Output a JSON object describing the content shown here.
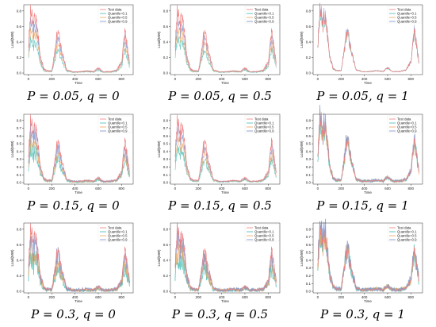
{
  "colors": {
    "test": "#f08080",
    "q01": "#3fb9b0",
    "q05": "#f0a35a",
    "q09": "#7b8fc9",
    "axis": "#333333"
  },
  "chart_data": [
    {
      "type": "line",
      "caption": "P = 0.05, q = 0",
      "xlabel": "Time",
      "ylabel": "Load(MW)",
      "xlim": [
        -40,
        900
      ],
      "ylim": [
        -0.02,
        0.88
      ],
      "xticks": [
        0,
        200,
        400,
        600,
        800
      ],
      "yticks": [
        0.0,
        0.2,
        0.4,
        0.6,
        0.8
      ],
      "legend": [
        "Test data",
        "Quantile=0.1",
        "Quantile=0.5",
        "Quantile=0.9"
      ],
      "noise": 0.2,
      "qshape": "tight",
      "x": [
        0,
        20,
        40,
        60,
        80,
        100,
        130,
        160,
        200,
        230,
        250,
        270,
        300,
        330,
        380,
        450,
        500,
        560,
        600,
        640,
        700,
        760,
        800,
        830,
        850,
        870
      ],
      "series": [
        {
          "name": "Test data",
          "values": [
            0.35,
            0.8,
            0.62,
            0.72,
            0.55,
            0.25,
            0.06,
            0.03,
            0.03,
            0.3,
            0.55,
            0.42,
            0.2,
            0.04,
            0.02,
            0.02,
            0.03,
            0.02,
            0.07,
            0.02,
            0.02,
            0.04,
            0.15,
            0.55,
            0.35,
            0.12
          ]
        }
      ]
    },
    {
      "type": "line",
      "caption": "P = 0.05, q = 0.5",
      "xlabel": "Time",
      "ylabel": "Load(MW)",
      "xlim": [
        -40,
        900
      ],
      "ylim": [
        -0.02,
        0.88
      ],
      "xticks": [
        0,
        200,
        400,
        600,
        800
      ],
      "yticks": [
        0.0,
        0.2,
        0.4,
        0.6,
        0.8
      ],
      "legend": [
        "Test data",
        "Quantile=0.1",
        "Quantile=0.5",
        "Quantile=0.9"
      ],
      "noise": 0.2,
      "qshape": "tight",
      "x": [
        0,
        20,
        40,
        60,
        80,
        100,
        130,
        160,
        200,
        230,
        250,
        270,
        300,
        330,
        380,
        450,
        500,
        560,
        600,
        640,
        700,
        760,
        800,
        830,
        850,
        870
      ],
      "series": [
        {
          "name": "Test data",
          "values": [
            0.35,
            0.8,
            0.62,
            0.72,
            0.55,
            0.25,
            0.06,
            0.03,
            0.03,
            0.3,
            0.55,
            0.42,
            0.2,
            0.04,
            0.02,
            0.02,
            0.03,
            0.02,
            0.07,
            0.02,
            0.02,
            0.04,
            0.15,
            0.55,
            0.35,
            0.12
          ]
        }
      ]
    },
    {
      "type": "line",
      "caption": "P = 0.05, q = 1",
      "xlabel": "Time",
      "ylabel": "Load(MW)",
      "xlim": [
        -40,
        900
      ],
      "ylim": [
        -0.02,
        0.88
      ],
      "xticks": [
        0,
        200,
        400,
        600,
        800
      ],
      "yticks": [
        0.0,
        0.2,
        0.4,
        0.6,
        0.8
      ],
      "legend": [
        "Test data",
        "Quantile=0.1",
        "Quantile=0.5",
        "Quantile=0.9"
      ],
      "noise": 0.15,
      "qshape": "follow",
      "x": [
        0,
        20,
        40,
        60,
        80,
        100,
        130,
        160,
        200,
        230,
        250,
        270,
        300,
        330,
        380,
        450,
        500,
        560,
        600,
        640,
        700,
        760,
        800,
        830,
        850,
        870
      ],
      "series": [
        {
          "name": "Test data",
          "values": [
            0.35,
            0.8,
            0.62,
            0.72,
            0.55,
            0.25,
            0.06,
            0.03,
            0.03,
            0.3,
            0.55,
            0.42,
            0.2,
            0.04,
            0.02,
            0.02,
            0.03,
            0.02,
            0.07,
            0.02,
            0.02,
            0.04,
            0.15,
            0.55,
            0.35,
            0.12
          ]
        }
      ]
    },
    {
      "type": "line",
      "caption": "P = 0.15, q = 0",
      "xlabel": "Time",
      "ylabel": "Load(MW)",
      "xlim": [
        -40,
        900
      ],
      "ylim": [
        -0.02,
        0.88
      ],
      "xticks": [
        0,
        200,
        400,
        600,
        800
      ],
      "yticks": [
        0.0,
        0.1,
        0.2,
        0.3,
        0.4,
        0.5,
        0.6,
        0.7,
        0.8
      ],
      "legend": [
        "Test data",
        "Quantile=0.1",
        "Quantile=0.5",
        "Quantile=0.9"
      ],
      "noise": 0.5,
      "qshape": "wide",
      "x": [
        0,
        20,
        40,
        60,
        80,
        100,
        130,
        160,
        200,
        230,
        250,
        270,
        300,
        330,
        380,
        450,
        500,
        560,
        600,
        640,
        700,
        760,
        800,
        830,
        850,
        870
      ],
      "series": [
        {
          "name": "Test data",
          "values": [
            0.35,
            0.8,
            0.62,
            0.72,
            0.55,
            0.25,
            0.06,
            0.03,
            0.03,
            0.3,
            0.55,
            0.42,
            0.2,
            0.04,
            0.02,
            0.02,
            0.03,
            0.02,
            0.07,
            0.02,
            0.02,
            0.04,
            0.15,
            0.55,
            0.35,
            0.12
          ]
        }
      ]
    },
    {
      "type": "line",
      "caption": "P = 0.15, q = 0.5",
      "xlabel": "Time",
      "ylabel": "Load(MW)",
      "xlim": [
        -40,
        900
      ],
      "ylim": [
        -0.02,
        0.88
      ],
      "xticks": [
        0,
        200,
        400,
        600,
        800
      ],
      "yticks": [
        0.0,
        0.1,
        0.2,
        0.3,
        0.4,
        0.5,
        0.6,
        0.7,
        0.8
      ],
      "legend": [
        "Test data",
        "Quantile=0.1",
        "Quantile=0.5",
        "Quantile=0.9"
      ],
      "noise": 0.3,
      "qshape": "tight",
      "x": [
        0,
        20,
        40,
        60,
        80,
        100,
        130,
        160,
        200,
        230,
        250,
        270,
        300,
        330,
        380,
        450,
        500,
        560,
        600,
        640,
        700,
        760,
        800,
        830,
        850,
        870
      ],
      "series": [
        {
          "name": "Test data",
          "values": [
            0.35,
            0.8,
            0.62,
            0.72,
            0.55,
            0.25,
            0.06,
            0.03,
            0.03,
            0.3,
            0.55,
            0.42,
            0.2,
            0.04,
            0.02,
            0.02,
            0.03,
            0.02,
            0.07,
            0.02,
            0.02,
            0.04,
            0.15,
            0.55,
            0.35,
            0.12
          ]
        }
      ]
    },
    {
      "type": "line",
      "caption": "P = 0.15, q = 1",
      "xlabel": "Time",
      "ylabel": "Load(MW)",
      "xlim": [
        -40,
        900
      ],
      "ylim": [
        -0.02,
        0.88
      ],
      "xticks": [
        0,
        200,
        400,
        600,
        800
      ],
      "yticks": [
        0.0,
        0.1,
        0.2,
        0.3,
        0.4,
        0.5,
        0.6,
        0.7,
        0.8
      ],
      "legend": [
        "Test data",
        "Quantile=0.1",
        "Quantile=0.5",
        "Quantile=0.9"
      ],
      "noise": 0.7,
      "qshape": "follow",
      "x": [
        0,
        20,
        40,
        60,
        80,
        100,
        130,
        160,
        200,
        230,
        250,
        270,
        300,
        330,
        380,
        450,
        500,
        560,
        600,
        640,
        700,
        760,
        800,
        830,
        850,
        870
      ],
      "series": [
        {
          "name": "Test data",
          "values": [
            0.35,
            0.8,
            0.62,
            0.72,
            0.55,
            0.25,
            0.06,
            0.03,
            0.03,
            0.3,
            0.55,
            0.42,
            0.2,
            0.04,
            0.02,
            0.02,
            0.03,
            0.02,
            0.07,
            0.02,
            0.02,
            0.04,
            0.15,
            0.55,
            0.35,
            0.12
          ]
        }
      ]
    },
    {
      "type": "line",
      "caption": "P = 0.3, q = 0",
      "xlabel": "Time",
      "ylabel": "Load(MW)",
      "xlim": [
        -40,
        900
      ],
      "ylim": [
        -0.02,
        0.88
      ],
      "xticks": [
        0,
        200,
        400,
        600,
        800
      ],
      "yticks": [
        0.0,
        0.2,
        0.4,
        0.6,
        0.8
      ],
      "legend": [
        "Test data",
        "Quantile=0.1",
        "Quantile=0.5",
        "Quantile=0.9"
      ],
      "noise": 0.9,
      "qshape": "wide",
      "x": [
        0,
        20,
        40,
        60,
        80,
        100,
        130,
        160,
        200,
        230,
        250,
        270,
        300,
        330,
        380,
        450,
        500,
        560,
        600,
        640,
        700,
        760,
        800,
        830,
        850,
        870
      ],
      "series": [
        {
          "name": "Test data",
          "values": [
            0.35,
            0.8,
            0.62,
            0.72,
            0.55,
            0.25,
            0.06,
            0.03,
            0.03,
            0.3,
            0.55,
            0.42,
            0.2,
            0.04,
            0.02,
            0.02,
            0.03,
            0.02,
            0.07,
            0.02,
            0.02,
            0.04,
            0.15,
            0.55,
            0.35,
            0.12
          ]
        }
      ]
    },
    {
      "type": "line",
      "caption": "P = 0.3, q = 0.5",
      "xlabel": "Time",
      "ylabel": "Load(MW)",
      "xlim": [
        -40,
        900
      ],
      "ylim": [
        -0.02,
        0.88
      ],
      "xticks": [
        0,
        200,
        400,
        600,
        800
      ],
      "yticks": [
        0.0,
        0.2,
        0.4,
        0.6,
        0.8
      ],
      "legend": [
        "Test data",
        "Quantile=0.1",
        "Quantile=0.5",
        "Quantile=0.9"
      ],
      "noise": 0.9,
      "qshape": "wide",
      "x": [
        0,
        20,
        40,
        60,
        80,
        100,
        130,
        160,
        200,
        230,
        250,
        270,
        300,
        330,
        380,
        450,
        500,
        560,
        600,
        640,
        700,
        760,
        800,
        830,
        850,
        870
      ],
      "series": [
        {
          "name": "Test data",
          "values": [
            0.35,
            0.8,
            0.62,
            0.72,
            0.55,
            0.25,
            0.06,
            0.03,
            0.03,
            0.3,
            0.55,
            0.42,
            0.2,
            0.04,
            0.02,
            0.02,
            0.03,
            0.02,
            0.07,
            0.02,
            0.02,
            0.04,
            0.15,
            0.55,
            0.35,
            0.12
          ]
        }
      ]
    },
    {
      "type": "line",
      "caption": "P = 0.3, q = 1",
      "xlabel": "Time",
      "ylabel": "Load(MW)",
      "xlim": [
        -40,
        900
      ],
      "ylim": [
        -0.02,
        0.88
      ],
      "xticks": [
        0,
        200,
        400,
        600,
        800
      ],
      "yticks": [
        0.0,
        0.1,
        0.2,
        0.3,
        0.4,
        0.5,
        0.6,
        0.7,
        0.8
      ],
      "legend": [
        "Test data",
        "Quantile=0.1",
        "Quantile=0.5",
        "Quantile=0.9"
      ],
      "noise": 1.0,
      "qshape": "follow",
      "x": [
        0,
        20,
        40,
        60,
        80,
        100,
        130,
        160,
        200,
        230,
        250,
        270,
        300,
        330,
        380,
        450,
        500,
        560,
        600,
        640,
        700,
        760,
        800,
        830,
        850,
        870
      ],
      "series": [
        {
          "name": "Test data",
          "values": [
            0.35,
            0.8,
            0.62,
            0.72,
            0.55,
            0.25,
            0.06,
            0.03,
            0.03,
            0.3,
            0.55,
            0.42,
            0.2,
            0.04,
            0.02,
            0.02,
            0.03,
            0.02,
            0.07,
            0.02,
            0.02,
            0.04,
            0.15,
            0.55,
            0.35,
            0.12
          ]
        }
      ]
    }
  ]
}
